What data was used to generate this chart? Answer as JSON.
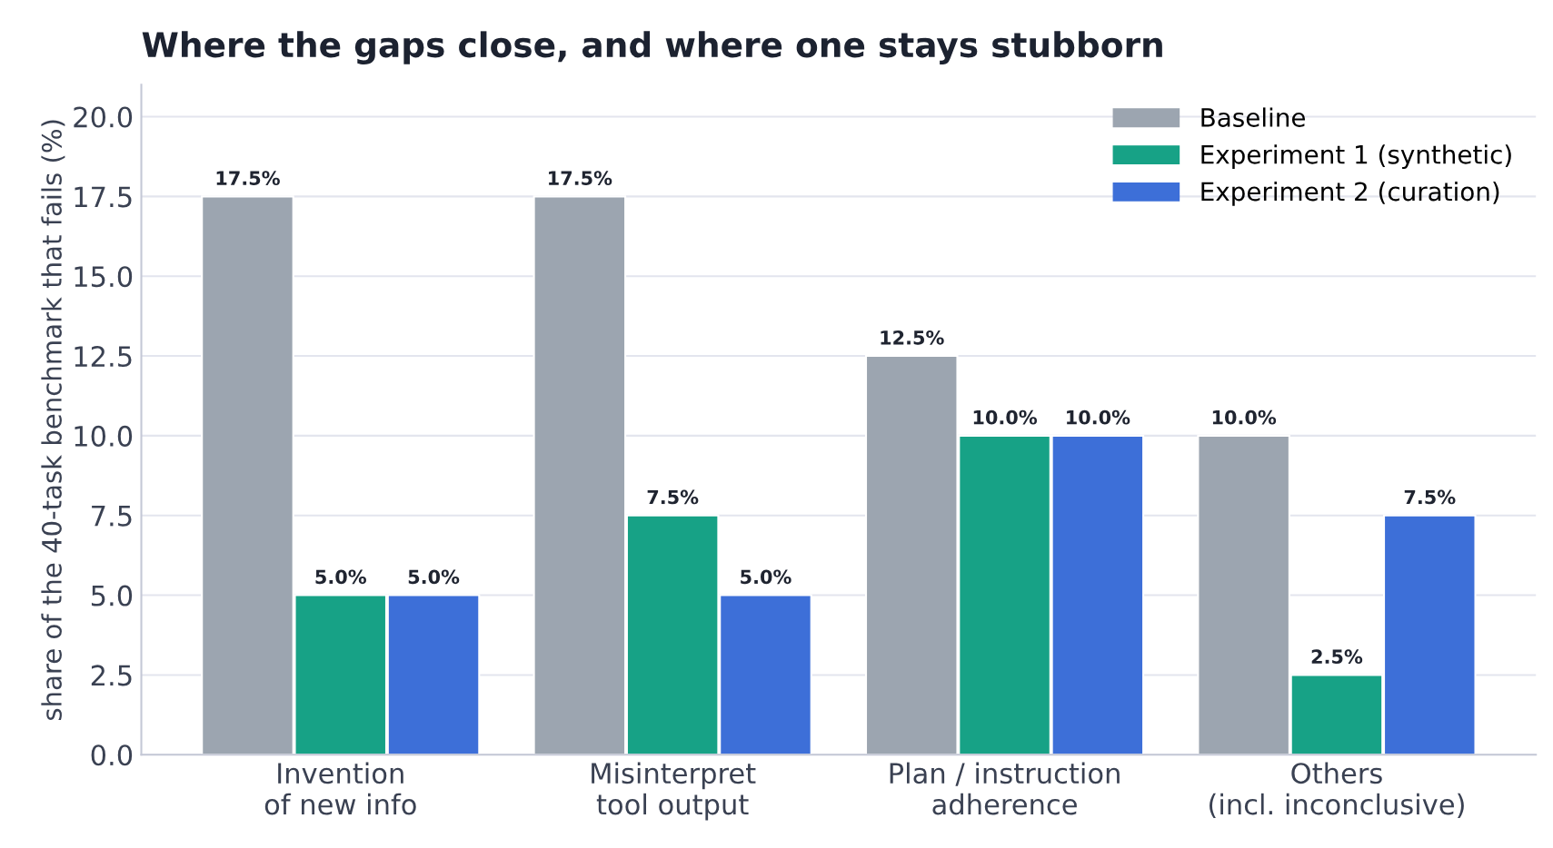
{
  "chart_data": {
    "type": "bar",
    "title": "Where the gaps close, and where one stays stubborn",
    "ylabel": "share of the 40-task benchmark that fails (%)",
    "categories": [
      "Invention\nof new info",
      "Misinterpret\ntool output",
      "Plan / instruction\nadherence",
      "Others\n(incl. inconclusive)"
    ],
    "series": [
      {
        "name": "Baseline",
        "color": "#9ca5b0",
        "values": [
          17.5,
          17.5,
          12.5,
          10.0
        ],
        "value_labels": [
          "17.5%",
          "17.5%",
          "12.5%",
          "10.0%"
        ]
      },
      {
        "name": "Experiment 1 (synthetic)",
        "color": "#17a286",
        "values": [
          5.0,
          7.5,
          10.0,
          2.5
        ],
        "value_labels": [
          "5.0%",
          "7.5%",
          "10.0%",
          "2.5%"
        ]
      },
      {
        "name": "Experiment 2 (curation)",
        "color": "#3d6fd8",
        "values": [
          5.0,
          5.0,
          10.0,
          7.5
        ],
        "value_labels": [
          "5.0%",
          "5.0%",
          "10.0%",
          "7.5%"
        ]
      }
    ],
    "ylim": [
      0,
      21
    ],
    "yticks": [
      {
        "value": 0,
        "label": "0.0"
      },
      {
        "value": 2.5,
        "label": "2.5"
      },
      {
        "value": 5,
        "label": "5.0"
      },
      {
        "value": 7.5,
        "label": "7.5"
      },
      {
        "value": 10,
        "label": "10.0"
      },
      {
        "value": 12.5,
        "label": "12.5"
      },
      {
        "value": 15,
        "label": "15.0"
      },
      {
        "value": 17.5,
        "label": "17.5"
      },
      {
        "value": 20,
        "label": "20.0"
      }
    ],
    "grid": "y",
    "legend": "top right"
  }
}
